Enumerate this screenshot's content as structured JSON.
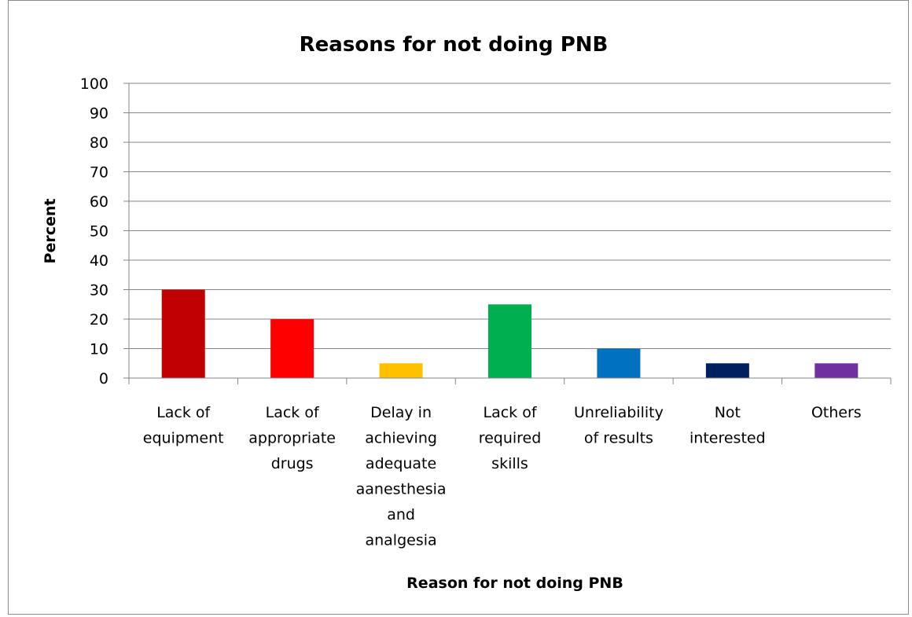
{
  "chart_data": {
    "type": "bar",
    "title": "Reasons for not doing PNB",
    "xlabel": "Reason for not doing PNB",
    "ylabel": "Percent",
    "ylim": [
      0,
      100
    ],
    "yticks": [
      0,
      10,
      20,
      30,
      40,
      50,
      60,
      70,
      80,
      90,
      100
    ],
    "grid": true,
    "legend": "none",
    "categories": [
      [
        "Lack of",
        "equipment"
      ],
      [
        "Lack of",
        "appropriate",
        "drugs"
      ],
      [
        "Delay in",
        "achieving",
        "adequate",
        "aanesthesia",
        "and",
        "analgesia"
      ],
      [
        "Lack of",
        "required",
        "skills"
      ],
      [
        "Unreliability",
        "of results"
      ],
      [
        "Not",
        "interested"
      ],
      [
        "Others"
      ]
    ],
    "values": [
      30,
      20,
      5,
      25,
      10,
      5,
      5
    ],
    "colors": [
      "#C00000",
      "#FF0000",
      "#FFC000",
      "#00B050",
      "#0070C0",
      "#002060",
      "#7030A0"
    ]
  }
}
